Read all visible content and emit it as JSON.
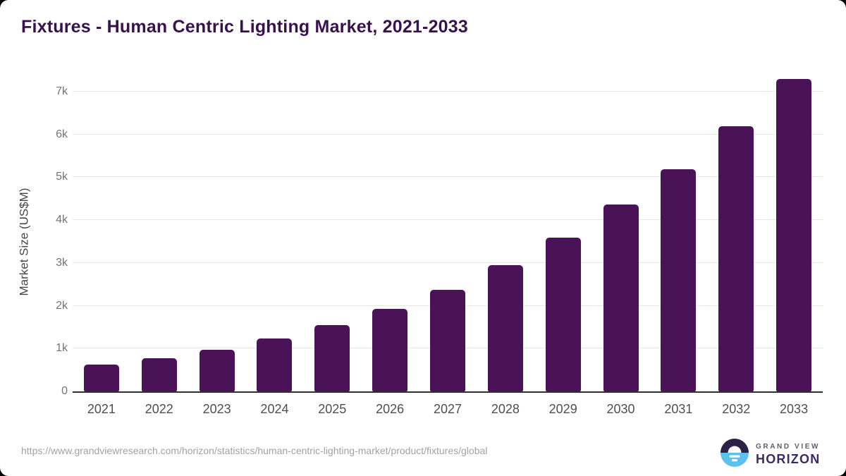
{
  "card": {
    "title": "Fixtures - Human Centric Lighting Market, 2021-2033",
    "source_url": "https://www.grandviewresearch.com/horizon/statistics/human-centric-lighting-market/product/fixtures/global",
    "logo": {
      "line1": "GRAND VIEW",
      "line2": "HORIZON"
    }
  },
  "chart_data": {
    "type": "bar",
    "title": "Fixtures - Human Centric Lighting Market, 2021-2033",
    "categories": [
      "2021",
      "2022",
      "2023",
      "2024",
      "2025",
      "2026",
      "2027",
      "2028",
      "2029",
      "2030",
      "2031",
      "2032",
      "2033"
    ],
    "values": [
      620,
      780,
      975,
      1235,
      1550,
      1930,
      2380,
      2950,
      3590,
      4360,
      5190,
      6190,
      7300
    ],
    "xlabel": "",
    "ylabel": "Market Size (US$M)",
    "ylim": [
      0,
      7000
    ],
    "ytick_labels": [
      "0",
      "1k",
      "2k",
      "3k",
      "4k",
      "5k",
      "6k",
      "7k"
    ],
    "ytick_values": [
      0,
      1000,
      2000,
      3000,
      4000,
      5000,
      6000,
      7000
    ],
    "grid": "horizontal",
    "legend": "none",
    "bar_color": "#4a1358"
  },
  "colors": {
    "bar": "#4a1358",
    "title_text": "#38114e",
    "gridline": "#e7e7ea",
    "axis_line": "#2f2f2f",
    "y_tick_text": "#747474",
    "x_tick_text": "#4f4f4f",
    "axis_title_text": "#464646",
    "source_url_text": "#a2a2a2",
    "logo_dark": "#2b2045",
    "logo_blue": "#5bc2ee",
    "logo_horizon_text": "#3b2b63",
    "logo_grandview_text": "#5d5d6e"
  }
}
